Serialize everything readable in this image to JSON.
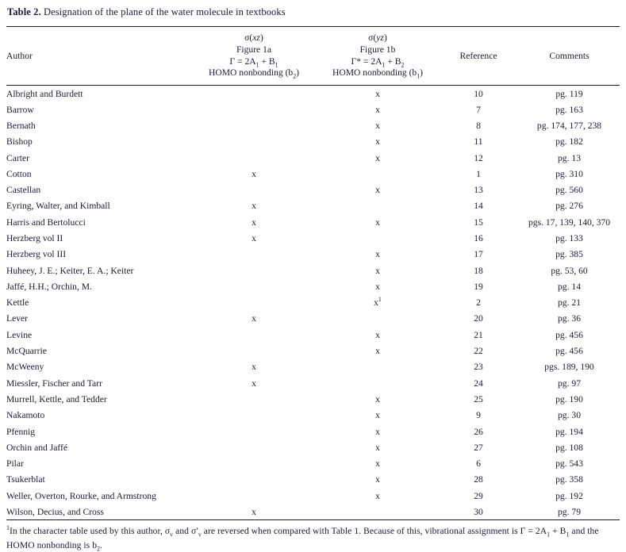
{
  "title": {
    "label": "Table 2.",
    "text": " Designation of the plane of the water molecule in textbooks"
  },
  "table": {
    "columns": {
      "author": "Author",
      "reference": "Reference",
      "comments": "Comments",
      "xz_header": {
        "line1": [
          {
            "v": "σ(",
            "s": ""
          },
          {
            "v": "xz",
            "s": "i"
          },
          {
            "v": ")",
            "s": ""
          }
        ],
        "line2": [
          {
            "v": "Figure 1a",
            "s": ""
          }
        ],
        "line3": [
          {
            "v": "Γ = 2A",
            "s": ""
          },
          {
            "v": "1",
            "s": "sub"
          },
          {
            "v": " + B",
            "s": ""
          },
          {
            "v": "1",
            "s": "sub"
          }
        ],
        "line4": [
          {
            "v": "HOMO nonbonding (b",
            "s": ""
          },
          {
            "v": "2",
            "s": "sub"
          },
          {
            "v": ")",
            "s": ""
          }
        ]
      },
      "yz_header": {
        "line1": [
          {
            "v": "σ(",
            "s": ""
          },
          {
            "v": "yz",
            "s": "i"
          },
          {
            "v": ")",
            "s": ""
          }
        ],
        "line2": [
          {
            "v": "Figure 1b",
            "s": ""
          }
        ],
        "line3": [
          {
            "v": "Γ* = 2A",
            "s": ""
          },
          {
            "v": "1",
            "s": "sub"
          },
          {
            "v": " + B",
            "s": ""
          },
          {
            "v": "2",
            "s": "sub"
          }
        ],
        "line4": [
          {
            "v": "HOMO nonbonding (b",
            "s": ""
          },
          {
            "v": "1",
            "s": "sub"
          },
          {
            "v": ")",
            "s": ""
          }
        ]
      }
    },
    "rows": [
      {
        "author": "Albright and Burdett",
        "xz": "",
        "yz": "x",
        "ref": "10",
        "comments": "pg. 119"
      },
      {
        "author": "Barrow",
        "xz": "",
        "yz": "x",
        "ref": "7",
        "comments": "pg. 163"
      },
      {
        "author": "Bernath",
        "xz": "",
        "yz": "x",
        "ref": "8",
        "comments": "pg. 174, 177, 238"
      },
      {
        "author": "Bishop",
        "xz": "",
        "yz": "x",
        "ref": "11",
        "comments": "pg. 182"
      },
      {
        "author": "Carter",
        "xz": "",
        "yz": "x",
        "ref": "12",
        "comments": "pg. 13"
      },
      {
        "author": "Cotton",
        "xz": "x",
        "yz": "",
        "ref": "1",
        "comments": "pg. 310"
      },
      {
        "author": "Castellan",
        "xz": "",
        "yz": "x",
        "ref": "13",
        "comments": "pg. 560"
      },
      {
        "author": "Eyring, Walter, and Kimball",
        "xz": "x",
        "yz": "",
        "ref": "14",
        "comments": "pg. 276"
      },
      {
        "author": "Harris and Bertolucci",
        "xz": "x",
        "yz": "x",
        "ref": "15",
        "comments": "pgs. 17, 139, 140, 370"
      },
      {
        "author": "Herzberg vol II",
        "xz": "x",
        "yz": "",
        "ref": "16",
        "comments": "pg. 133"
      },
      {
        "author": "Herzberg vol III",
        "xz": "",
        "yz": "x",
        "ref": "17",
        "comments": "pg. 385"
      },
      {
        "author": "Huheey, J. E.; Keiter, E. A.; Keiter",
        "xz": "",
        "yz": "x",
        "ref": "18",
        "comments": "pg. 53, 60"
      },
      {
        "author": "Jaffé, H.H.; Orchin, M.",
        "xz": "",
        "yz": "x",
        "ref": "19",
        "comments": "pg. 14"
      },
      {
        "author": "Kettle",
        "xz": "",
        "yz": "x",
        "yz_note": "1",
        "ref": "2",
        "comments": "pg. 21"
      },
      {
        "author": "Lever",
        "xz": "x",
        "yz": "",
        "ref": "20",
        "comments": "pg. 36"
      },
      {
        "author": "Levine",
        "xz": "",
        "yz": "x",
        "ref": "21",
        "comments": "pg. 456"
      },
      {
        "author": "McQuarrie",
        "xz": "",
        "yz": "x",
        "ref": "22",
        "comments": "pg. 456"
      },
      {
        "author": "McWeeny",
        "xz": "x",
        "yz": "",
        "ref": "23",
        "comments": "pgs. 189, 190"
      },
      {
        "author": "Miessler, Fischer and Tarr",
        "xz": "x",
        "yz": "",
        "ref": "24",
        "comments": "pg. 97"
      },
      {
        "author": "Murrell, Kettle, and Tedder",
        "xz": "",
        "yz": "x",
        "ref": "25",
        "comments": "pg. 190"
      },
      {
        "author": "Nakamoto",
        "xz": "",
        "yz": "x",
        "ref": "9",
        "comments": "pg. 30"
      },
      {
        "author": "Pfennig",
        "xz": "",
        "yz": "x",
        "ref": "26",
        "comments": "pg. 194"
      },
      {
        "author": "Orchin and Jaffé",
        "xz": "",
        "yz": "x",
        "ref": "27",
        "comments": "pg. 108"
      },
      {
        "author": "Pilar",
        "xz": "",
        "yz": "x",
        "ref": "6",
        "comments": "pg. 543"
      },
      {
        "author": "Tsukerblat",
        "xz": "",
        "yz": "x",
        "ref": "28",
        "comments": "pg. 358"
      },
      {
        "author": "Weller, Overton, Rourke, and Armstrong",
        "xz": "",
        "yz": "x",
        "ref": "29",
        "comments": "pg. 192"
      },
      {
        "author": "Wilson, Decius, and Cross",
        "xz": "x",
        "yz": "",
        "ref": "30",
        "comments": "pg. 79"
      }
    ]
  },
  "footnote": {
    "segments": [
      {
        "v": "1",
        "s": "sup"
      },
      {
        "v": "In the character table used by this author, σ",
        "s": ""
      },
      {
        "v": "v",
        "s": "sub"
      },
      {
        "v": " and σ′",
        "s": ""
      },
      {
        "v": "v",
        "s": "sub"
      },
      {
        "v": " are reversed when compared with Table 1. Because of this, vibrational assignment is Γ = 2A",
        "s": ""
      },
      {
        "v": "1",
        "s": "sub"
      },
      {
        "v": " + B",
        "s": ""
      },
      {
        "v": "1",
        "s": "sub"
      },
      {
        "v": " and the HOMO nonbonding is b",
        "s": ""
      },
      {
        "v": "2",
        "s": "sub"
      },
      {
        "v": ".",
        "s": ""
      }
    ]
  },
  "colors": {
    "text": "#1b1b33",
    "rule": "#1c1c1c",
    "background": "#ffffff"
  }
}
